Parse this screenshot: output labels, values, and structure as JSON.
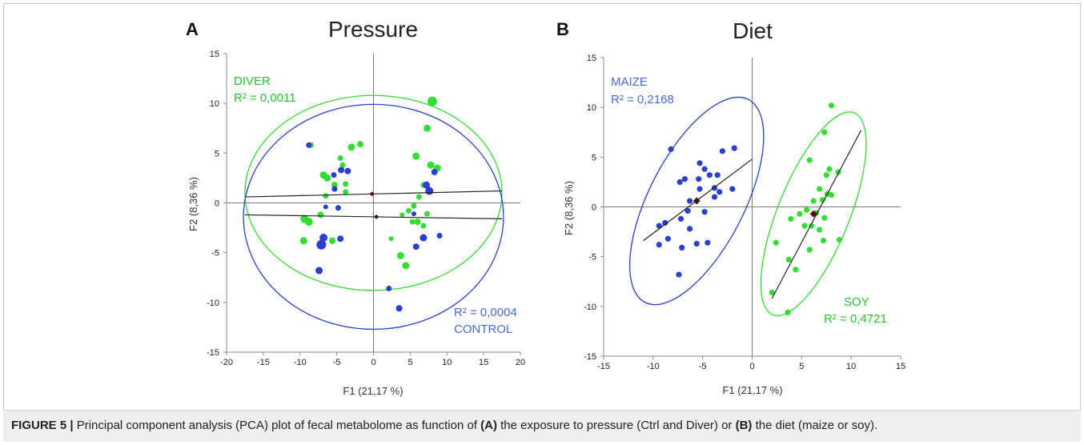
{
  "caption": {
    "label": "FIGURE 5 |",
    "text_pre": " Principal component analysis (PCA) plot of fecal metabolome as function of ",
    "a_bold": "(A)",
    "text_mid": " the exposure to pressure (Ctrl and Diver) or ",
    "b_bold": "(B)",
    "text_post": " the diet (maize or soy)."
  },
  "colors": {
    "green": "#33dd33",
    "blue": "#2a3fcc",
    "blue_text": "#4a6ad8",
    "green_text": "#2fc02f",
    "centroid": "#4a1010",
    "line": "#222222"
  },
  "chart_data": [
    {
      "type": "scatter",
      "panel": "A",
      "title": "Pressure",
      "xlabel": "F1 (21,17 %)",
      "ylabel": "F2 (8,36 %)",
      "xlim": [
        -20,
        20
      ],
      "ylim": [
        -15,
        15
      ],
      "xticks": [
        "-20",
        "-15",
        "-10",
        "-5",
        "0",
        "5",
        "10",
        "15",
        "20"
      ],
      "yticks": [
        "15",
        "10",
        "5",
        "0",
        "-5",
        "-10",
        "-15"
      ],
      "annotations": [
        {
          "text": "DIVER",
          "color": "green"
        },
        {
          "text": "R² = 0,0011",
          "color": "green"
        },
        {
          "text": "R² = 0,0004",
          "color": "blue"
        },
        {
          "text": "CONTROL",
          "color": "blue"
        }
      ],
      "series": [
        {
          "color": "green",
          "points": [
            [
              8,
              10.2,
              6
            ],
            [
              7.3,
              7.5,
              4.5
            ],
            [
              -1.8,
              5.9,
              4
            ],
            [
              -3,
              5.6,
              4.5
            ],
            [
              -8.5,
              5.8,
              3.5
            ],
            [
              5.8,
              4.7,
              4.5
            ],
            [
              -4.5,
              4.5,
              3.5
            ],
            [
              -4.2,
              3.8,
              3.5
            ],
            [
              8.7,
              3.5,
              4.5
            ],
            [
              7.8,
              3.8,
              4.5
            ],
            [
              -6.8,
              2.8,
              4.5
            ],
            [
              -6.3,
              2.5,
              4.5
            ],
            [
              -3.8,
              1.9,
              3.5
            ],
            [
              -5.3,
              1.8,
              4
            ],
            [
              6.8,
              1.8,
              3.5
            ],
            [
              -3.8,
              1.1,
              3.5
            ],
            [
              -6.5,
              0.7,
              3.5
            ],
            [
              6.2,
              0.6,
              3.5
            ],
            [
              -9.4,
              -1.6,
              5
            ],
            [
              -8.8,
              -1.9,
              5
            ],
            [
              -7.2,
              -1.2,
              4
            ],
            [
              4.8,
              -0.8,
              3.5
            ],
            [
              5.5,
              -0.3,
              3.5
            ],
            [
              3.9,
              -1.2,
              3
            ],
            [
              7.3,
              -1.1,
              3.5
            ],
            [
              6,
              -1.9,
              4
            ],
            [
              5.3,
              -1.9,
              3.5
            ],
            [
              6.8,
              -2.3,
              3.5
            ],
            [
              2.4,
              -3.6,
              3
            ],
            [
              -9.5,
              -3.8,
              4.5
            ],
            [
              -5.6,
              -3.8,
              4
            ],
            [
              -7.3,
              -4.1,
              3.5
            ],
            [
              3.7,
              -5.3,
              4.5
            ],
            [
              4.4,
              -6.3,
              4.5
            ]
          ]
        },
        {
          "color": "blue",
          "points": [
            [
              -8.8,
              5.8,
              3.5
            ],
            [
              -3.5,
              3.2,
              4
            ],
            [
              -4.4,
              3.3,
              4
            ],
            [
              -5.4,
              2.8,
              3.5
            ],
            [
              7.2,
              1.8,
              4.5
            ],
            [
              7.6,
              1.2,
              5
            ],
            [
              8.3,
              3.1,
              4
            ],
            [
              -5.3,
              1.4,
              3.5
            ],
            [
              -4.8,
              -0.5,
              3.5
            ],
            [
              -6.8,
              -3.5,
              5
            ],
            [
              -4.5,
              -3.6,
              4
            ],
            [
              -7.1,
              -4.2,
              6
            ],
            [
              6.8,
              -3.5,
              4.5
            ],
            [
              9,
              -3.3,
              3.5
            ],
            [
              5.8,
              -4.4,
              4
            ],
            [
              2.1,
              -8.6,
              3.5
            ],
            [
              3.5,
              -10.6,
              4
            ],
            [
              -7.4,
              -6.8,
              4.5
            ],
            [
              -6.5,
              -0.4,
              3
            ],
            [
              5.5,
              -1.1,
              3
            ]
          ]
        }
      ],
      "fits": [
        {
          "color": "line",
          "from": [
            -17.5,
            0.6
          ],
          "to": [
            17.5,
            1.2
          ]
        },
        {
          "color": "line",
          "from": [
            -17.5,
            -1.2
          ],
          "to": [
            17.5,
            -1.6
          ]
        }
      ],
      "ellipses": [
        {
          "color": "green",
          "cx": 0,
          "cy": 1.0,
          "rx": 17.5,
          "ry": 9.8
        },
        {
          "color": "blue",
          "cx": 0,
          "cy": -1.4,
          "rx": 17.7,
          "ry": 11.3
        }
      ],
      "centroids": [
        [
          -0.2,
          0.9
        ],
        [
          0.4,
          -1.4
        ]
      ]
    },
    {
      "type": "scatter",
      "panel": "B",
      "title": "Diet",
      "xlabel": "F1 (21,17 %)",
      "ylabel": "F2 (8,36 %)",
      "xlim": [
        -15,
        15
      ],
      "ylim": [
        -15,
        15
      ],
      "xticks": [
        "-15",
        "-10",
        "-5",
        "0",
        "5",
        "10",
        "15"
      ],
      "yticks": [
        "15",
        "10",
        "5",
        "0",
        "-5",
        "-10",
        "-15"
      ],
      "annotations": [
        {
          "text": "MAIZE",
          "color": "blue"
        },
        {
          "text": "R² = 0,2168",
          "color": "blue"
        },
        {
          "text": "SOY",
          "color": "green"
        },
        {
          "text": "R² = 0,4721",
          "color": "green"
        }
      ],
      "series": [
        {
          "color": "blue",
          "points": [
            [
              -8.2,
              5.8
            ],
            [
              -1.8,
              5.9
            ],
            [
              -3,
              5.6
            ],
            [
              -5.3,
              4.4
            ],
            [
              -4.8,
              3.8
            ],
            [
              -4.3,
              3.2
            ],
            [
              -3.5,
              3.2
            ],
            [
              -5.4,
              2.8
            ],
            [
              -6.8,
              2.8
            ],
            [
              -7.3,
              2.5
            ],
            [
              -5.3,
              1.8
            ],
            [
              -3.8,
              1.9
            ],
            [
              -3.3,
              1.5
            ],
            [
              -6.3,
              0.6
            ],
            [
              -3.8,
              1.0
            ],
            [
              -2.0,
              1.8
            ],
            [
              -8.8,
              -1.6
            ],
            [
              -9.4,
              -1.9
            ],
            [
              -7.2,
              -1.2
            ],
            [
              -6.5,
              -0.4
            ],
            [
              -4.8,
              -0.5
            ],
            [
              -8.5,
              -3.2
            ],
            [
              -9.4,
              -3.8
            ],
            [
              -5.6,
              -3.7
            ],
            [
              -4.5,
              -3.6
            ],
            [
              -7.1,
              -4.1
            ],
            [
              -7.4,
              -6.8
            ],
            [
              -6.3,
              -2.2
            ]
          ]
        },
        {
          "color": "green",
          "points": [
            [
              8,
              10.2
            ],
            [
              7.3,
              7.5
            ],
            [
              5.8,
              4.7
            ],
            [
              8.7,
              3.5
            ],
            [
              7.8,
              3.8
            ],
            [
              7.5,
              3.2
            ],
            [
              6.8,
              1.8
            ],
            [
              7.6,
              1.3
            ],
            [
              6.2,
              0.6
            ],
            [
              7.1,
              0.7
            ],
            [
              4.8,
              -0.7
            ],
            [
              5.5,
              -0.3
            ],
            [
              3.9,
              -1.2
            ],
            [
              7.3,
              -1.1
            ],
            [
              6.0,
              -1.9
            ],
            [
              5.3,
              -1.9
            ],
            [
              6.8,
              -2.3
            ],
            [
              2.4,
              -3.6
            ],
            [
              7.2,
              -3.4
            ],
            [
              8.8,
              -3.3
            ],
            [
              5.8,
              -4.3
            ],
            [
              3.7,
              -5.3
            ],
            [
              4.4,
              -6.3
            ],
            [
              2.0,
              -8.6
            ],
            [
              3.6,
              -10.6
            ],
            [
              6.5,
              -0.6
            ],
            [
              8.0,
              1.2
            ]
          ]
        }
      ],
      "fits": [
        {
          "color": "line",
          "from": [
            -11,
            -3.4
          ],
          "to": [
            0,
            4.8
          ]
        },
        {
          "color": "line",
          "from": [
            2,
            -9.2
          ],
          "to": [
            11,
            7.7
          ]
        }
      ],
      "ellipses": [
        {
          "color": "blue",
          "cx": -5.6,
          "cy": 0.6,
          "rx": 11.5,
          "ry": 4.8,
          "angle": -63
        },
        {
          "color": "green",
          "cx": 6.2,
          "cy": -0.7,
          "rx": 11.0,
          "ry": 3.6,
          "angle": -68
        }
      ],
      "centroids": [
        [
          -5.6,
          0.6
        ],
        [
          6.2,
          -0.7
        ]
      ]
    }
  ]
}
